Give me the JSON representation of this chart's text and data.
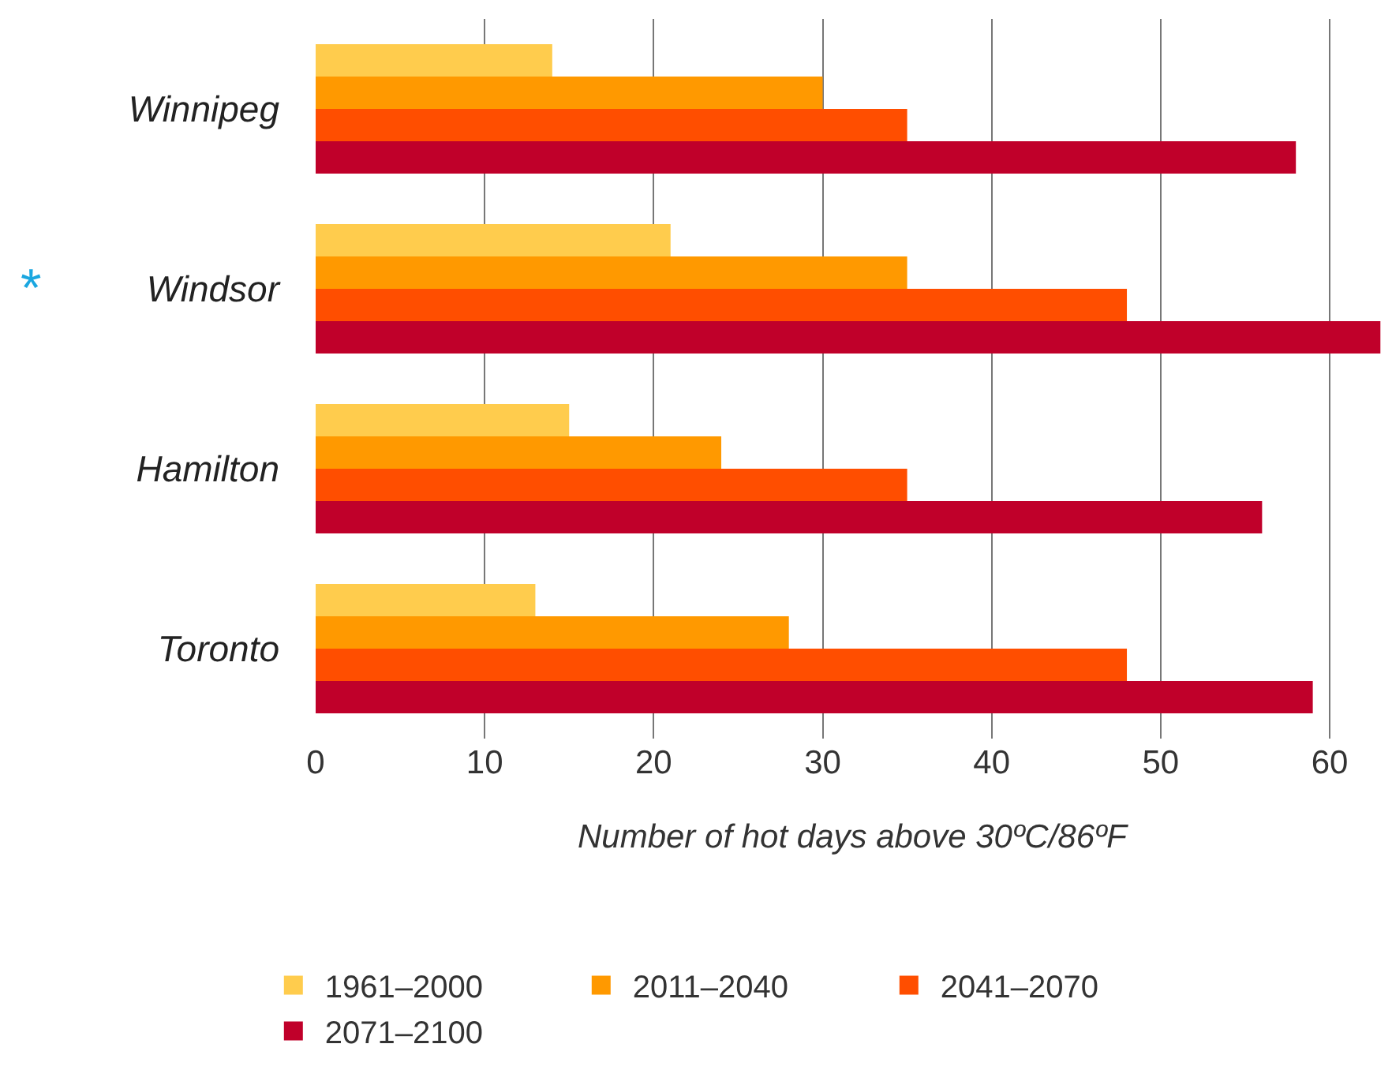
{
  "chart_data": {
    "type": "bar",
    "orientation": "horizontal",
    "xlabel": "Number of hot days above 30ºC/86ºF",
    "categories": [
      "Winnipeg",
      "Windsor",
      "Hamilton",
      "Toronto"
    ],
    "series": [
      {
        "name": "1961–2000",
        "color": "#ffcc4d",
        "values": [
          14,
          21,
          15,
          13
        ]
      },
      {
        "name": "2011–2040",
        "color": "#ff9900",
        "values": [
          30,
          35,
          24,
          28
        ]
      },
      {
        "name": "2041–2070",
        "color": "#ff4e00",
        "values": [
          35,
          48,
          35,
          48
        ]
      },
      {
        "name": "2071–2100",
        "color": "#c0002a",
        "values": [
          58,
          63,
          56,
          59
        ]
      }
    ],
    "xlim": [
      0,
      63.5
    ],
    "xticks": [
      0,
      10,
      20,
      30,
      40,
      50,
      60
    ],
    "grid": "x",
    "legend": "bottom",
    "annotations": [
      "*"
    ]
  }
}
